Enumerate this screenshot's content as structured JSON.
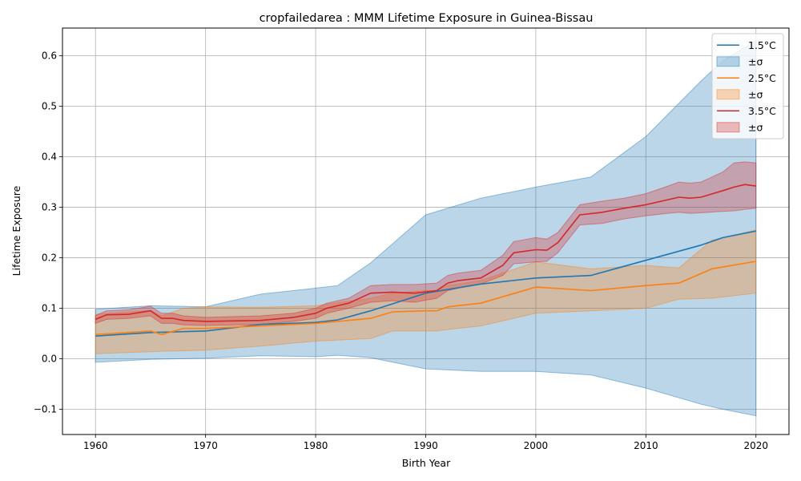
{
  "chart_data": {
    "type": "line",
    "title": "cropfailedarea : MMM Lifetime Exposure in Guinea-Bissau",
    "xlabel": "Birth Year",
    "ylabel": "Lifetime Exposure",
    "xlim": [
      1957,
      2023
    ],
    "ylim": [
      -0.15,
      0.655
    ],
    "xticks": [
      1960,
      1970,
      1980,
      1990,
      2000,
      2010,
      2020
    ],
    "xtick_labels": [
      "1960",
      "1970",
      "1980",
      "1990",
      "2000",
      "2010",
      "2020"
    ],
    "yticks": [
      -0.1,
      0.0,
      0.1,
      0.2,
      0.3,
      0.4,
      0.5,
      0.6
    ],
    "ytick_labels": [
      "−0.1",
      "0.0",
      "0.1",
      "0.2",
      "0.3",
      "0.4",
      "0.5",
      "0.6"
    ],
    "grid": true,
    "legend_position": "top-right",
    "series": [
      {
        "name": "1.5°C",
        "band_label": "±σ",
        "color": "#1f77b4",
        "band_color": "#1f77b4",
        "band_opacity": 0.3,
        "x": [
          1960,
          1965,
          1970,
          1975,
          1980,
          1982,
          1985,
          1990,
          1995,
          2000,
          2005,
          2010,
          2015,
          2017,
          2020
        ],
        "mean": [
          0.045,
          0.052,
          0.055,
          0.068,
          0.072,
          0.077,
          0.095,
          0.13,
          0.148,
          0.16,
          0.165,
          0.195,
          0.225,
          0.24,
          0.253
        ],
        "lower": [
          -0.007,
          -0.001,
          0.001,
          0.006,
          0.004,
          0.007,
          0.002,
          -0.02,
          -0.025,
          -0.025,
          -0.032,
          -0.058,
          -0.09,
          -0.1,
          -0.113
        ],
        "upper": [
          0.098,
          0.105,
          0.103,
          0.128,
          0.14,
          0.145,
          0.19,
          0.285,
          0.318,
          0.34,
          0.36,
          0.44,
          0.55,
          0.59,
          0.63
        ]
      },
      {
        "name": "2.5°C",
        "band_label": "±σ",
        "color": "#ff7f0e",
        "band_color": "#ff7f0e",
        "band_opacity": 0.3,
        "x": [
          1960,
          1965,
          1966,
          1968,
          1970,
          1975,
          1980,
          1985,
          1987,
          1990,
          1991,
          1992,
          1995,
          2000,
          2005,
          2010,
          2013,
          2016,
          2020
        ],
        "mean": [
          0.048,
          0.055,
          0.048,
          0.06,
          0.06,
          0.065,
          0.07,
          0.08,
          0.093,
          0.095,
          0.095,
          0.103,
          0.11,
          0.142,
          0.135,
          0.145,
          0.15,
          0.178,
          0.193
        ],
        "lower": [
          0.01,
          0.014,
          0.015,
          0.016,
          0.017,
          0.025,
          0.035,
          0.04,
          0.055,
          0.055,
          0.055,
          0.058,
          0.065,
          0.09,
          0.095,
          0.1,
          0.118,
          0.12,
          0.13
        ],
        "upper": [
          0.088,
          0.096,
          0.085,
          0.1,
          0.103,
          0.102,
          0.105,
          0.12,
          0.13,
          0.135,
          0.135,
          0.145,
          0.155,
          0.192,
          0.178,
          0.185,
          0.18,
          0.235,
          0.255
        ]
      },
      {
        "name": "3.5°C",
        "band_label": "±σ",
        "color": "#d62728",
        "band_color": "#d62728",
        "band_opacity": 0.3,
        "x": [
          1960,
          1961,
          1963,
          1965,
          1966,
          1967,
          1968,
          1970,
          1975,
          1978,
          1980,
          1981,
          1983,
          1985,
          1987,
          1989,
          1991,
          1992,
          1993,
          1995,
          1997,
          1998,
          2000,
          2001,
          2002,
          2004,
          2006,
          2008,
          2010,
          2012,
          2013,
          2014,
          2015,
          2017,
          2018,
          2019,
          2020
        ],
        "mean": [
          0.078,
          0.087,
          0.088,
          0.095,
          0.08,
          0.08,
          0.076,
          0.074,
          0.076,
          0.082,
          0.09,
          0.1,
          0.11,
          0.13,
          0.132,
          0.13,
          0.135,
          0.15,
          0.155,
          0.16,
          0.185,
          0.21,
          0.216,
          0.215,
          0.23,
          0.285,
          0.29,
          0.298,
          0.305,
          0.315,
          0.32,
          0.318,
          0.32,
          0.333,
          0.34,
          0.345,
          0.342
        ],
        "lower": [
          0.07,
          0.078,
          0.08,
          0.085,
          0.07,
          0.07,
          0.067,
          0.066,
          0.068,
          0.074,
          0.08,
          0.09,
          0.1,
          0.112,
          0.115,
          0.112,
          0.12,
          0.135,
          0.14,
          0.148,
          0.165,
          0.188,
          0.192,
          0.193,
          0.21,
          0.265,
          0.268,
          0.277,
          0.283,
          0.288,
          0.29,
          0.288,
          0.289,
          0.292,
          0.293,
          0.296,
          0.298
        ],
        "upper": [
          0.086,
          0.095,
          0.097,
          0.104,
          0.09,
          0.09,
          0.085,
          0.082,
          0.085,
          0.09,
          0.1,
          0.11,
          0.12,
          0.145,
          0.147,
          0.147,
          0.15,
          0.165,
          0.17,
          0.175,
          0.205,
          0.232,
          0.24,
          0.237,
          0.25,
          0.305,
          0.312,
          0.318,
          0.327,
          0.342,
          0.35,
          0.348,
          0.35,
          0.37,
          0.388,
          0.39,
          0.388
        ]
      }
    ]
  }
}
